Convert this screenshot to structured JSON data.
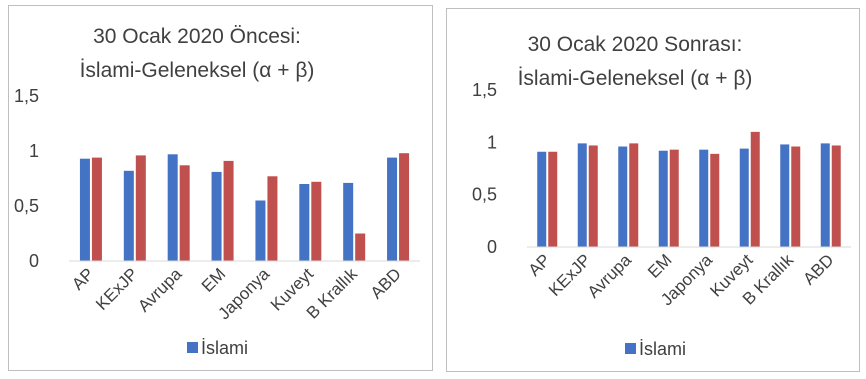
{
  "colors": {
    "islami": "#4472C4",
    "geleneksel": "#C0504D",
    "axis": "#D9D9D9",
    "text": "#404040"
  },
  "chart_data": [
    {
      "type": "bar",
      "title": [
        "30 Ocak 2020 Öncesi:",
        "İslami-Geleneksel (α + β)"
      ],
      "categories": [
        "AP",
        "KExJP",
        "Avrupa",
        "EM",
        "Japonya",
        "Kuveyt",
        "B Krallık",
        "ABD"
      ],
      "yticks": [
        "0",
        "0,5",
        "1",
        "1,5"
      ],
      "ylim": [
        0,
        1.5
      ],
      "grid": false,
      "legend_position": "bottom",
      "legend_label": "İslami",
      "series": [
        {
          "name": "İslami",
          "color": "#4472C4",
          "values": [
            0.93,
            0.82,
            0.97,
            0.81,
            0.55,
            0.7,
            0.71,
            0.94
          ]
        },
        {
          "color": "#C0504D",
          "values": [
            0.94,
            0.96,
            0.87,
            0.91,
            0.77,
            0.72,
            0.25,
            0.98
          ]
        }
      ]
    },
    {
      "type": "bar",
      "title": [
        "30 Ocak 2020 Sonrası:",
        "İslami-Geleneksel (α + β)"
      ],
      "categories": [
        "AP",
        "KExJP",
        "Avrupa",
        "EM",
        "Japonya",
        "Kuveyt",
        "B Krallık",
        "ABD"
      ],
      "yticks": [
        "0",
        "0,5",
        "1",
        "1,5"
      ],
      "ylim": [
        0,
        1.5
      ],
      "grid": false,
      "legend_position": "bottom",
      "legend_label": "İslami",
      "series": [
        {
          "name": "İslami",
          "color": "#4472C4",
          "values": [
            0.91,
            0.99,
            0.96,
            0.92,
            0.93,
            0.94,
            0.98,
            0.99
          ]
        },
        {
          "color": "#C0504D",
          "values": [
            0.91,
            0.97,
            0.99,
            0.93,
            0.89,
            1.1,
            0.96,
            0.97
          ]
        }
      ]
    }
  ]
}
